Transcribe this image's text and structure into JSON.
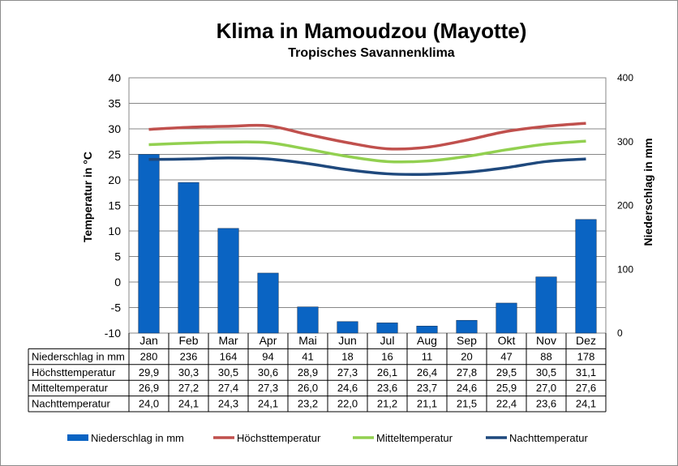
{
  "chart_data": {
    "type": "bar",
    "title": "Klima in Mamoudzou (Mayotte)",
    "subtitle": "Tropisches Savannenklima",
    "ylabel": "Temperatur in °C",
    "y2label": "Niederschlag in mm",
    "ylim": [
      -10,
      40
    ],
    "y2lim": [
      0,
      400
    ],
    "yticks": [
      "40",
      "35",
      "30",
      "25",
      "20",
      "15",
      "10",
      "5",
      "0",
      "-5",
      "-10"
    ],
    "y2ticks": [
      "400",
      "300",
      "200",
      "100",
      "0"
    ],
    "grid": true,
    "legend_position": "bottom",
    "categories": [
      "Jan",
      "Feb",
      "Mar",
      "Apr",
      "Mai",
      "Jun",
      "Jul",
      "Aug",
      "Sep",
      "Okt",
      "Nov",
      "Dez"
    ],
    "series": [
      {
        "name": "Niederschlag in mm",
        "type": "bar",
        "axis": "right",
        "color": "#0a64c3",
        "values": [
          280,
          236,
          164,
          94,
          41,
          18,
          16,
          11,
          20,
          47,
          88,
          178
        ],
        "labels": [
          "280",
          "236",
          "164",
          "94",
          "41",
          "18",
          "16",
          "11",
          "20",
          "47",
          "88",
          "178"
        ]
      },
      {
        "name": "Höchsttemperatur",
        "type": "line",
        "axis": "left",
        "color": "#c0504d",
        "values": [
          29.9,
          30.3,
          30.5,
          30.6,
          28.9,
          27.3,
          26.1,
          26.4,
          27.8,
          29.5,
          30.5,
          31.1
        ],
        "labels": [
          "29,9",
          "30,3",
          "30,5",
          "30,6",
          "28,9",
          "27,3",
          "26,1",
          "26,4",
          "27,8",
          "29,5",
          "30,5",
          "31,1"
        ]
      },
      {
        "name": "Mitteltemperatur",
        "type": "line",
        "axis": "left",
        "color": "#92d050",
        "values": [
          26.9,
          27.2,
          27.4,
          27.3,
          26.0,
          24.6,
          23.6,
          23.7,
          24.6,
          25.9,
          27.0,
          27.6
        ],
        "labels": [
          "26,9",
          "27,2",
          "27,4",
          "27,3",
          "26,0",
          "24,6",
          "23,6",
          "23,7",
          "24,6",
          "25,9",
          "27,0",
          "27,6"
        ]
      },
      {
        "name": "Nachttemperatur",
        "type": "line",
        "axis": "left",
        "color": "#1f497d",
        "values": [
          24.0,
          24.1,
          24.3,
          24.1,
          23.2,
          22.0,
          21.2,
          21.1,
          21.5,
          22.4,
          23.6,
          24.1
        ],
        "labels": [
          "24,0",
          "24,1",
          "24,3",
          "24,1",
          "23,2",
          "22,0",
          "21,2",
          "21,1",
          "21,5",
          "22,4",
          "23,6",
          "24,1"
        ]
      }
    ]
  }
}
